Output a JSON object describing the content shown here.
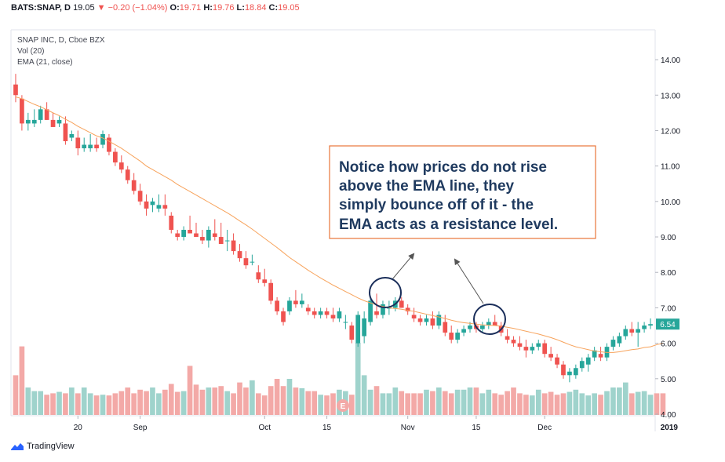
{
  "header": {
    "symbol": "BATS:SNAP, D",
    "last": "19.05",
    "change_arrow": "▼",
    "change": "−0.20 (−1.04%)",
    "open_label": "O:",
    "open": "19.71",
    "high_label": "H:",
    "high": "19.76",
    "low_label": "L:",
    "low": "18.84",
    "close_label": "C:",
    "close": "19.05"
  },
  "legend": {
    "line1": "SNAP INC, D, Cboe BZX",
    "line2": "Vol (20)",
    "line3": "EMA (21, close)"
  },
  "annotation": {
    "lines": [
      "Notice how prices do not rise",
      "above the EMA line, they",
      "simply bounce off of it - the",
      "EMA acts as a resistance level."
    ]
  },
  "earnings_marker": "E",
  "footer": {
    "brand": "TradingView"
  },
  "colors": {
    "up": "#26a69a",
    "down": "#ef5350",
    "ema": "#f7a35c",
    "vol_up": "#9fd3cc",
    "vol_down": "#f3a9a7",
    "callout_border": "#e8753a",
    "circle": "#1a2e5a",
    "price_badge": "#26a69a"
  },
  "chart_data": {
    "type": "candlestick",
    "ylim": [
      4.0,
      14.4
    ],
    "y_ticks": [
      "14.00",
      "13.00",
      "12.00",
      "11.00",
      "10.00",
      "9.00",
      "8.00",
      "7.00",
      "6.00",
      "5.00",
      "4.00"
    ],
    "x_ticks": [
      {
        "label": "20",
        "index": 10
      },
      {
        "label": "Sep",
        "index": 20
      },
      {
        "label": "Oct",
        "index": 40
      },
      {
        "label": "15",
        "index": 50
      },
      {
        "label": "Nov",
        "index": 63
      },
      {
        "label": "15",
        "index": 74
      },
      {
        "label": "Dec",
        "index": 85
      },
      {
        "label": "2019",
        "index": 105
      }
    ],
    "last_price_label": "6.54",
    "last_price": 6.54,
    "candles": [
      [
        13.3,
        13.6,
        12.8,
        13.0
      ],
      [
        12.9,
        13.0,
        12.0,
        12.2
      ],
      [
        12.2,
        12.5,
        12.0,
        12.3
      ],
      [
        12.2,
        12.6,
        12.1,
        12.3
      ],
      [
        12.3,
        12.7,
        12.2,
        12.6
      ],
      [
        12.6,
        12.8,
        12.3,
        12.3
      ],
      [
        12.3,
        12.5,
        12.1,
        12.1
      ],
      [
        12.2,
        12.4,
        12.1,
        12.3
      ],
      [
        12.2,
        12.4,
        11.6,
        11.7
      ],
      [
        11.8,
        12.0,
        11.7,
        11.9
      ],
      [
        11.8,
        12.0,
        11.3,
        11.5
      ],
      [
        11.5,
        11.8,
        11.4,
        11.6
      ],
      [
        11.5,
        11.9,
        11.4,
        11.6
      ],
      [
        11.6,
        11.8,
        11.4,
        11.5
      ],
      [
        11.6,
        12.0,
        11.5,
        11.9
      ],
      [
        11.8,
        11.9,
        11.3,
        11.4
      ],
      [
        11.4,
        11.5,
        11.0,
        11.1
      ],
      [
        11.1,
        11.3,
        10.8,
        10.9
      ],
      [
        10.9,
        11.0,
        10.5,
        10.6
      ],
      [
        10.6,
        10.8,
        10.2,
        10.3
      ],
      [
        10.3,
        10.5,
        9.9,
        10.0
      ],
      [
        10.0,
        10.2,
        9.6,
        9.8
      ],
      [
        9.9,
        10.1,
        9.7,
        10.0
      ],
      [
        9.8,
        10.2,
        9.7,
        9.9
      ],
      [
        9.9,
        10.2,
        9.6,
        9.8
      ],
      [
        9.6,
        9.7,
        9.1,
        9.2
      ],
      [
        9.1,
        9.2,
        8.9,
        9.0
      ],
      [
        9.0,
        9.3,
        8.9,
        9.2
      ],
      [
        9.2,
        9.6,
        9.1,
        9.1
      ],
      [
        9.1,
        9.4,
        9.0,
        9.0
      ],
      [
        9.0,
        9.2,
        8.8,
        8.9
      ],
      [
        8.9,
        9.3,
        8.7,
        9.2
      ],
      [
        9.1,
        9.5,
        8.9,
        9.0
      ],
      [
        9.0,
        9.4,
        8.9,
        8.8
      ],
      [
        8.9,
        9.2,
        8.6,
        8.9
      ],
      [
        8.9,
        9.1,
        8.5,
        8.6
      ],
      [
        8.6,
        8.8,
        8.3,
        8.4
      ],
      [
        8.4,
        8.6,
        8.1,
        8.2
      ],
      [
        8.3,
        8.5,
        8.2,
        8.3
      ],
      [
        8.0,
        8.2,
        7.7,
        7.8
      ],
      [
        7.8,
        8.1,
        7.6,
        7.7
      ],
      [
        7.7,
        7.8,
        7.1,
        7.2
      ],
      [
        7.2,
        7.3,
        6.8,
        6.9
      ],
      [
        6.9,
        7.0,
        6.5,
        6.6
      ],
      [
        6.9,
        7.3,
        6.8,
        7.2
      ],
      [
        7.2,
        7.5,
        7.0,
        7.1
      ],
      [
        7.1,
        7.4,
        7.0,
        7.2
      ],
      [
        7.0,
        7.1,
        6.8,
        6.9
      ],
      [
        6.9,
        7.0,
        6.7,
        6.8
      ],
      [
        6.8,
        7.0,
        6.7,
        6.9
      ],
      [
        6.9,
        7.0,
        6.7,
        6.8
      ],
      [
        6.8,
        7.0,
        6.6,
        6.7
      ],
      [
        6.7,
        7.0,
        6.6,
        6.9
      ],
      [
        6.6,
        6.8,
        6.4,
        6.6
      ],
      [
        6.5,
        6.6,
        6.0,
        6.1
      ],
      [
        6.0,
        6.9,
        5.9,
        6.8
      ],
      [
        6.2,
        6.9,
        6.0,
        6.7
      ],
      [
        6.6,
        7.3,
        6.5,
        7.2
      ],
      [
        6.9,
        7.4,
        6.7,
        6.8
      ],
      [
        6.8,
        7.2,
        6.7,
        7.1
      ],
      [
        7.0,
        7.2,
        6.8,
        7.0
      ],
      [
        7.0,
        7.3,
        6.9,
        7.2
      ],
      [
        7.2,
        7.3,
        7.0,
        7.0
      ],
      [
        7.0,
        7.1,
        6.8,
        6.9
      ],
      [
        6.8,
        7.0,
        6.6,
        6.7
      ],
      [
        6.7,
        6.8,
        6.5,
        6.6
      ],
      [
        6.6,
        6.8,
        6.5,
        6.7
      ],
      [
        6.7,
        6.9,
        6.4,
        6.5
      ],
      [
        6.5,
        6.9,
        6.4,
        6.8
      ],
      [
        6.6,
        6.8,
        6.2,
        6.3
      ],
      [
        6.3,
        6.5,
        6.0,
        6.1
      ],
      [
        6.1,
        6.4,
        6.0,
        6.3
      ],
      [
        6.3,
        6.5,
        6.2,
        6.4
      ],
      [
        6.4,
        6.6,
        6.3,
        6.5
      ],
      [
        6.5,
        6.6,
        6.3,
        6.4
      ],
      [
        6.4,
        6.6,
        6.3,
        6.5
      ],
      [
        6.5,
        6.7,
        6.4,
        6.6
      ],
      [
        6.6,
        6.8,
        6.5,
        6.5
      ],
      [
        6.5,
        6.6,
        6.2,
        6.3
      ],
      [
        6.2,
        6.4,
        6.0,
        6.1
      ],
      [
        6.1,
        6.2,
        5.9,
        6.0
      ],
      [
        6.0,
        6.2,
        5.8,
        5.9
      ],
      [
        5.9,
        6.1,
        5.6,
        5.8
      ],
      [
        5.8,
        6.0,
        5.7,
        5.9
      ],
      [
        5.9,
        6.1,
        5.8,
        6.0
      ],
      [
        6.0,
        6.1,
        5.6,
        5.7
      ],
      [
        5.7,
        5.9,
        5.5,
        5.6
      ],
      [
        5.6,
        5.7,
        5.3,
        5.4
      ],
      [
        5.4,
        5.5,
        5.0,
        5.1
      ],
      [
        5.1,
        5.3,
        4.9,
        5.2
      ],
      [
        5.1,
        5.4,
        5.0,
        5.3
      ],
      [
        5.3,
        5.6,
        5.2,
        5.5
      ],
      [
        5.4,
        5.7,
        5.2,
        5.6
      ],
      [
        5.6,
        5.9,
        5.5,
        5.8
      ],
      [
        5.7,
        5.9,
        5.5,
        5.6
      ],
      [
        5.6,
        6.0,
        5.5,
        5.9
      ],
      [
        5.9,
        6.2,
        5.8,
        6.1
      ],
      [
        6.0,
        6.3,
        5.9,
        6.2
      ],
      [
        6.2,
        6.5,
        6.1,
        6.4
      ],
      [
        6.4,
        6.6,
        6.2,
        6.3
      ],
      [
        6.3,
        6.6,
        5.9,
        6.4
      ],
      [
        6.4,
        6.6,
        6.3,
        6.5
      ],
      [
        6.5,
        6.7,
        6.4,
        6.54
      ]
    ],
    "ema": [
      12.95,
      12.9,
      12.82,
      12.74,
      12.67,
      12.59,
      12.5,
      12.42,
      12.32,
      12.23,
      12.12,
      12.03,
      11.94,
      11.85,
      11.79,
      11.7,
      11.6,
      11.5,
      11.38,
      11.26,
      11.14,
      11.0,
      10.9,
      10.8,
      10.7,
      10.6,
      10.48,
      10.38,
      10.28,
      10.18,
      10.08,
      9.98,
      9.88,
      9.78,
      9.68,
      9.57,
      9.45,
      9.34,
      9.22,
      9.09,
      8.96,
      8.83,
      8.7,
      8.56,
      8.42,
      8.3,
      8.18,
      8.06,
      7.95,
      7.84,
      7.74,
      7.64,
      7.55,
      7.46,
      7.37,
      7.28,
      7.2,
      7.14,
      7.08,
      7.04,
      7.0,
      6.98,
      6.96,
      6.93,
      6.9,
      6.86,
      6.82,
      6.78,
      6.74,
      6.7,
      6.65,
      6.61,
      6.58,
      6.56,
      6.54,
      6.52,
      6.51,
      6.5,
      6.48,
      6.45,
      6.42,
      6.38,
      6.34,
      6.3,
      6.26,
      6.21,
      6.16,
      6.1,
      6.03,
      5.96,
      5.9,
      5.86,
      5.82,
      5.78,
      5.76,
      5.74,
      5.74,
      5.76,
      5.79,
      5.82,
      5.84,
      5.88,
      5.9,
      5.96,
      6.0
    ],
    "volume": [
      55,
      95,
      38,
      33,
      33,
      28,
      30,
      32,
      30,
      38,
      30,
      38,
      30,
      27,
      28,
      27,
      30,
      33,
      38,
      30,
      35,
      33,
      38,
      30,
      35,
      43,
      32,
      33,
      68,
      42,
      35,
      38,
      38,
      40,
      33,
      30,
      45,
      38,
      48,
      30,
      27,
      40,
      50,
      40,
      50,
      38,
      37,
      33,
      33,
      28,
      27,
      30,
      35,
      33,
      28,
      100,
      55,
      35,
      40,
      30,
      30,
      38,
      33,
      30,
      30,
      30,
      35,
      33,
      38,
      33,
      30,
      35,
      35,
      38,
      38,
      30,
      35,
      30,
      28,
      33,
      38,
      30,
      28,
      27,
      35,
      30,
      32,
      28,
      30,
      32,
      35,
      30,
      27,
      30,
      28,
      33,
      38,
      38,
      45,
      30,
      32,
      33,
      28,
      30,
      30
    ]
  }
}
